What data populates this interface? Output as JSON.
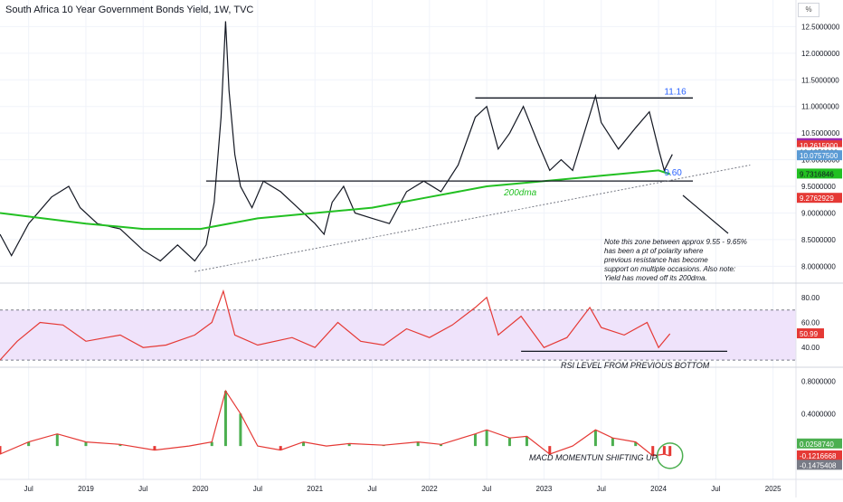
{
  "header": {
    "title": "South Africa 10 Year Government Bonds Yield, 1W, TVC",
    "scale_unit": "%"
  },
  "colors": {
    "price": "#131722",
    "ma_fast": "#5b9bd5",
    "ma_mid": "#9c27b0",
    "ma_slow": "#e53935",
    "ma_200": "#22c022",
    "rsi": "#e53935",
    "rsi_band": "#efe3fb",
    "macd": "#e53935",
    "signal": "#5b9bd5",
    "hist_pos": "#4caf50",
    "hist_neg": "#e53935",
    "note_arrow": "#131722"
  },
  "chart_data": [
    {
      "type": "line",
      "name": "price-panel",
      "ylim": [
        7.7,
        13.0
      ],
      "y_ticks": [
        "12.5000000",
        "12.0000000",
        "11.5000000",
        "11.0000000",
        "10.5000000",
        "10.0000000",
        "9.5000000",
        "9.0000000",
        "8.5000000",
        "8.0000000"
      ],
      "x_ticks": [
        "Jul",
        "2019",
        "Jul",
        "2020",
        "Jul",
        "2021",
        "Jul",
        "2022",
        "Jul",
        "2023",
        "Jul",
        "2024",
        "Jul",
        "2025"
      ],
      "series": [
        {
          "values": [
            [
              2018.25,
              8.6
            ],
            [
              2018.35,
              8.2
            ],
            [
              2018.5,
              8.8
            ],
            [
              2018.7,
              9.3
            ],
            [
              2018.85,
              9.5
            ],
            [
              2018.95,
              9.1
            ],
            [
              2019.1,
              8.8
            ],
            [
              2019.3,
              8.7
            ],
            [
              2019.5,
              8.3
            ],
            [
              2019.65,
              8.1
            ],
            [
              2019.8,
              8.4
            ],
            [
              2019.95,
              8.1
            ],
            [
              2020.05,
              8.4
            ],
            [
              2020.12,
              9.2
            ],
            [
              2020.18,
              10.8
            ],
            [
              2020.22,
              12.6
            ],
            [
              2020.25,
              11.3
            ],
            [
              2020.3,
              10.1
            ],
            [
              2020.35,
              9.5
            ],
            [
              2020.45,
              9.1
            ],
            [
              2020.55,
              9.6
            ],
            [
              2020.7,
              9.4
            ],
            [
              2020.85,
              9.1
            ],
            [
              2021.0,
              8.8
            ],
            [
              2021.08,
              8.6
            ],
            [
              2021.15,
              9.2
            ],
            [
              2021.25,
              9.5
            ],
            [
              2021.35,
              9.0
            ],
            [
              2021.5,
              8.9
            ],
            [
              2021.65,
              8.8
            ],
            [
              2021.8,
              9.4
            ],
            [
              2021.95,
              9.6
            ],
            [
              2022.1,
              9.4
            ],
            [
              2022.25,
              9.9
            ],
            [
              2022.4,
              10.8
            ],
            [
              2022.5,
              11.0
            ],
            [
              2022.6,
              10.2
            ],
            [
              2022.7,
              10.5
            ],
            [
              2022.82,
              11.0
            ],
            [
              2022.95,
              10.3
            ],
            [
              2023.05,
              9.8
            ],
            [
              2023.15,
              10.0
            ],
            [
              2023.25,
              9.8
            ],
            [
              2023.35,
              10.5
            ],
            [
              2023.45,
              11.2
            ],
            [
              2023.5,
              10.7
            ],
            [
              2023.65,
              10.2
            ],
            [
              2023.8,
              10.6
            ],
            [
              2023.92,
              10.9
            ],
            [
              2024.0,
              10.2
            ],
            [
              2024.05,
              9.8
            ],
            [
              2024.12,
              10.1
            ]
          ]
        },
        {
          "name": "200dma",
          "values": [
            [
              2018.25,
              9.0
            ],
            [
              2019.0,
              8.8
            ],
            [
              2019.5,
              8.7
            ],
            [
              2020.0,
              8.7
            ],
            [
              2020.5,
              8.9
            ],
            [
              2021.0,
              9.0
            ],
            [
              2021.5,
              9.1
            ],
            [
              2022.0,
              9.3
            ],
            [
              2022.5,
              9.5
            ],
            [
              2023.0,
              9.6
            ],
            [
              2023.5,
              9.7
            ],
            [
              2024.0,
              9.8
            ],
            [
              2024.1,
              9.73
            ]
          ]
        }
      ],
      "last_values": [
        "10.3029000",
        "10.2615000",
        "10.1350000",
        "10.0757500",
        "9.7316846",
        "9.2762929"
      ],
      "annotations": [
        "11.16",
        "9.60",
        "200dma",
        "Note this zone between approx 9.55 - 9.65%",
        "has been a pt of polarity where",
        "previous resistance has become",
        "support on multiple occasions. Also note:",
        "Yield has moved off its 200dma."
      ]
    },
    {
      "type": "line",
      "name": "rsi-panel",
      "ylim": [
        25,
        90
      ],
      "y_ticks": [
        "80.00",
        "60.00",
        "40.00"
      ],
      "series": [
        {
          "values": [
            [
              2018.25,
              30
            ],
            [
              2018.4,
              45
            ],
            [
              2018.6,
              60
            ],
            [
              2018.8,
              58
            ],
            [
              2019.0,
              45
            ],
            [
              2019.3,
              50
            ],
            [
              2019.5,
              40
            ],
            [
              2019.7,
              42
            ],
            [
              2019.95,
              50
            ],
            [
              2020.1,
              60
            ],
            [
              2020.2,
              85
            ],
            [
              2020.3,
              50
            ],
            [
              2020.5,
              42
            ],
            [
              2020.8,
              48
            ],
            [
              2021.0,
              40
            ],
            [
              2021.2,
              60
            ],
            [
              2021.4,
              45
            ],
            [
              2021.6,
              42
            ],
            [
              2021.8,
              55
            ],
            [
              2022.0,
              48
            ],
            [
              2022.2,
              58
            ],
            [
              2022.4,
              72
            ],
            [
              2022.5,
              80
            ],
            [
              2022.6,
              50
            ],
            [
              2022.8,
              65
            ],
            [
              2023.0,
              40
            ],
            [
              2023.2,
              48
            ],
            [
              2023.4,
              72
            ],
            [
              2023.5,
              56
            ],
            [
              2023.7,
              50
            ],
            [
              2023.9,
              60
            ],
            [
              2024.0,
              40
            ],
            [
              2024.1,
              50.99
            ]
          ]
        }
      ],
      "last_value": "50.99",
      "annotations": [
        "RSI LEVEL FROM PREVIOUS BOTTOM"
      ]
    },
    {
      "type": "bar",
      "name": "macd-panel",
      "ylim": [
        -0.3,
        0.95
      ],
      "y_ticks": [
        "0.8000000",
        "0.4000000"
      ],
      "series": [
        {
          "values": [
            [
              2018.25,
              -0.1
            ],
            [
              2018.5,
              0.05
            ],
            [
              2018.75,
              0.15
            ],
            [
              2019.0,
              0.05
            ],
            [
              2019.3,
              0.02
            ],
            [
              2019.6,
              -0.05
            ],
            [
              2019.9,
              0.0
            ],
            [
              2020.1,
              0.05
            ],
            [
              2020.22,
              0.68
            ],
            [
              2020.35,
              0.4
            ],
            [
              2020.5,
              0.0
            ],
            [
              2020.7,
              -0.05
            ],
            [
              2020.9,
              0.05
            ],
            [
              2021.1,
              0.0
            ],
            [
              2021.3,
              0.03
            ],
            [
              2021.6,
              0.01
            ],
            [
              2021.9,
              0.05
            ],
            [
              2022.1,
              0.02
            ],
            [
              2022.4,
              0.15
            ],
            [
              2022.5,
              0.2
            ],
            [
              2022.7,
              0.1
            ],
            [
              2022.85,
              0.12
            ],
            [
              2023.05,
              -0.1
            ],
            [
              2023.25,
              0.0
            ],
            [
              2023.45,
              0.2
            ],
            [
              2023.6,
              0.1
            ],
            [
              2023.8,
              0.05
            ],
            [
              2023.95,
              -0.12
            ],
            [
              2024.05,
              -0.1
            ],
            [
              2024.1,
              -0.1216668
            ]
          ]
        }
      ],
      "last_values": [
        "0.0258740",
        "-0.1216668",
        "-0.1475408"
      ],
      "annotations": [
        "MACD MOMENTUN SHIFTING UP"
      ]
    }
  ]
}
